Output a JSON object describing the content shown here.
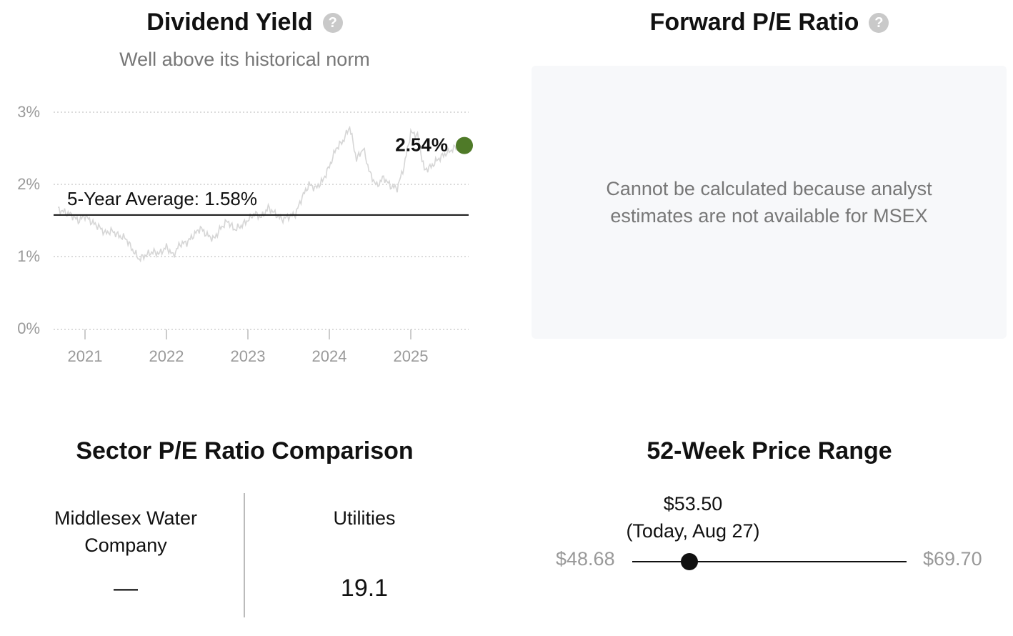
{
  "dividend_yield": {
    "title": "Dividend Yield",
    "help_icon": "?",
    "subtitle": "Well above its historical norm",
    "avg_label": "5-Year Average: 1.58%",
    "current_label": "2.54%",
    "marker_color": "#4f7a28",
    "line_color": "#d6d6d6"
  },
  "chart_data": {
    "type": "line",
    "title": "Dividend Yield",
    "y_ticks": [
      "3%",
      "2%",
      "1%",
      "0%"
    ],
    "x_ticks": [
      "2021",
      "2022",
      "2023",
      "2024",
      "2025"
    ],
    "ylim": [
      0,
      3
    ],
    "grid": true,
    "average": 1.58,
    "current": 2.54,
    "series": [
      {
        "points": [
          [
            "2020-09",
            1.66
          ],
          [
            "2020-10",
            1.62
          ],
          [
            "2020-11",
            1.58
          ],
          [
            "2020-12",
            1.5
          ],
          [
            "2021-01",
            1.57
          ],
          [
            "2021-02",
            1.48
          ],
          [
            "2021-03",
            1.42
          ],
          [
            "2021-04",
            1.33
          ],
          [
            "2021-05",
            1.36
          ],
          [
            "2021-06",
            1.29
          ],
          [
            "2021-07",
            1.26
          ],
          [
            "2021-08",
            1.1
          ],
          [
            "2021-09",
            0.97
          ],
          [
            "2021-10",
            1.03
          ],
          [
            "2021-11",
            1.07
          ],
          [
            "2021-12",
            1.05
          ],
          [
            "2022-01",
            1.14
          ],
          [
            "2022-02",
            1.02
          ],
          [
            "2022-03",
            1.18
          ],
          [
            "2022-04",
            1.2
          ],
          [
            "2022-05",
            1.3
          ],
          [
            "2022-06",
            1.4
          ],
          [
            "2022-07",
            1.3
          ],
          [
            "2022-08",
            1.25
          ],
          [
            "2022-09",
            1.4
          ],
          [
            "2022-10",
            1.5
          ],
          [
            "2022-11",
            1.38
          ],
          [
            "2022-12",
            1.43
          ],
          [
            "2023-01",
            1.51
          ],
          [
            "2023-02",
            1.6
          ],
          [
            "2023-03",
            1.55
          ],
          [
            "2023-04",
            1.68
          ],
          [
            "2023-05",
            1.6
          ],
          [
            "2023-06",
            1.52
          ],
          [
            "2023-07",
            1.56
          ],
          [
            "2023-08",
            1.59
          ],
          [
            "2023-09",
            1.83
          ],
          [
            "2023-10",
            2.0
          ],
          [
            "2023-11",
            1.95
          ],
          [
            "2023-12",
            2.05
          ],
          [
            "2024-01",
            2.25
          ],
          [
            "2024-02",
            2.5
          ],
          [
            "2024-03",
            2.6
          ],
          [
            "2024-04",
            2.8
          ],
          [
            "2024-05",
            2.35
          ],
          [
            "2024-06",
            2.5
          ],
          [
            "2024-07",
            2.15
          ],
          [
            "2024-08",
            1.98
          ],
          [
            "2024-09",
            2.1
          ],
          [
            "2024-10",
            1.98
          ],
          [
            "2024-11",
            1.95
          ],
          [
            "2024-12",
            2.25
          ],
          [
            "2025-01",
            2.72
          ],
          [
            "2025-02",
            2.68
          ],
          [
            "2025-03",
            2.2
          ],
          [
            "2025-04",
            2.25
          ],
          [
            "2025-05",
            2.35
          ],
          [
            "2025-06",
            2.42
          ],
          [
            "2025-07",
            2.48
          ],
          [
            "2025-08",
            2.54
          ]
        ]
      }
    ]
  },
  "forward_pe": {
    "title": "Forward P/E Ratio",
    "help_icon": "?",
    "message": "Cannot be calculated because analyst estimates are not available for MSEX"
  },
  "sector_pe": {
    "title": "Sector P/E Ratio Comparison",
    "company_label": "Middlesex Water Company",
    "company_value": "—",
    "sector_label": "Utilities",
    "sector_value": "19.1"
  },
  "price_range": {
    "title": "52-Week Price Range",
    "low": "$48.68",
    "high": "$69.70",
    "current_price": "$53.50",
    "current_date": "(Today, Aug 27)",
    "position": 0.209
  }
}
